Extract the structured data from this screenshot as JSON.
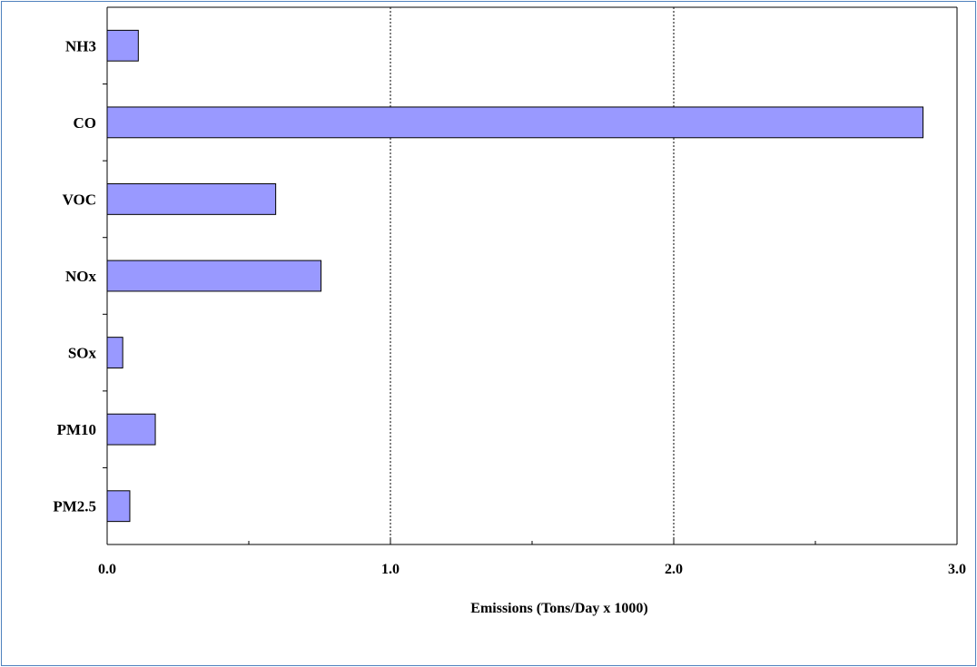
{
  "chart_data": {
    "type": "bar",
    "orientation": "horizontal",
    "categories": [
      "NH3",
      "CO",
      "VOC",
      "NOx",
      "SOx",
      "PM10",
      "PM2.5"
    ],
    "values": [
      0.11,
      2.88,
      0.595,
      0.755,
      0.055,
      0.17,
      0.08
    ],
    "title": "",
    "xlabel": "Emissions (Tons/Day x 1000)",
    "ylabel": "",
    "xlim": [
      0,
      3.0
    ],
    "xticks": [
      0.0,
      1.0,
      2.0,
      3.0
    ],
    "xtick_labels": [
      "0.0",
      "1.0",
      "2.0",
      "3.0"
    ],
    "grid": "vertical dashed at major ticks",
    "legend": "none",
    "colors": {
      "bar_fill": "#9999ff",
      "bar_stroke": "#000000",
      "frame": "#4f81bd"
    }
  }
}
